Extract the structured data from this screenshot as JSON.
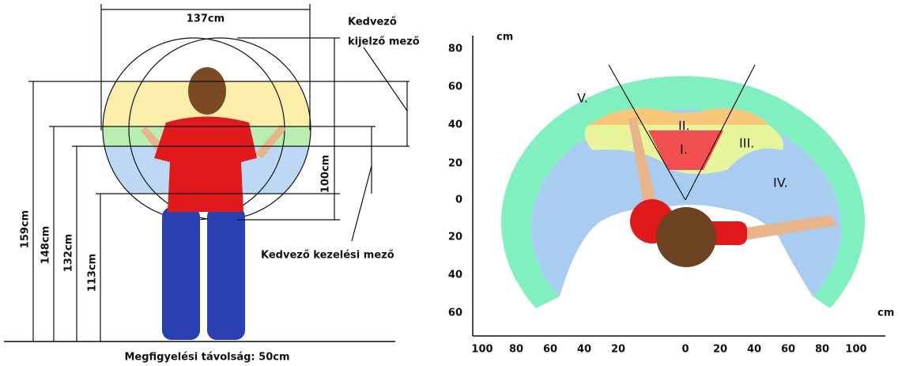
{
  "left": {
    "width_label": "137cm",
    "height_label": "100cm",
    "heights": [
      "159cm",
      "148cm",
      "132cm",
      "113cm"
    ],
    "display_field": [
      "Kedvező",
      "kijelző mező"
    ],
    "control_field": "Kedvező kezelési mező",
    "distance": "Megfigyelési távolság: 50cm"
  },
  "right": {
    "y_unit": "cm",
    "x_unit": "cm",
    "yticks": [
      80,
      60,
      40,
      20,
      0,
      20,
      40,
      60
    ],
    "xticks": [
      100,
      80,
      60,
      40,
      20,
      0,
      20,
      40,
      60,
      80,
      100
    ],
    "zones": [
      "I.",
      "II.",
      "III.",
      "IV.",
      "V."
    ]
  }
}
